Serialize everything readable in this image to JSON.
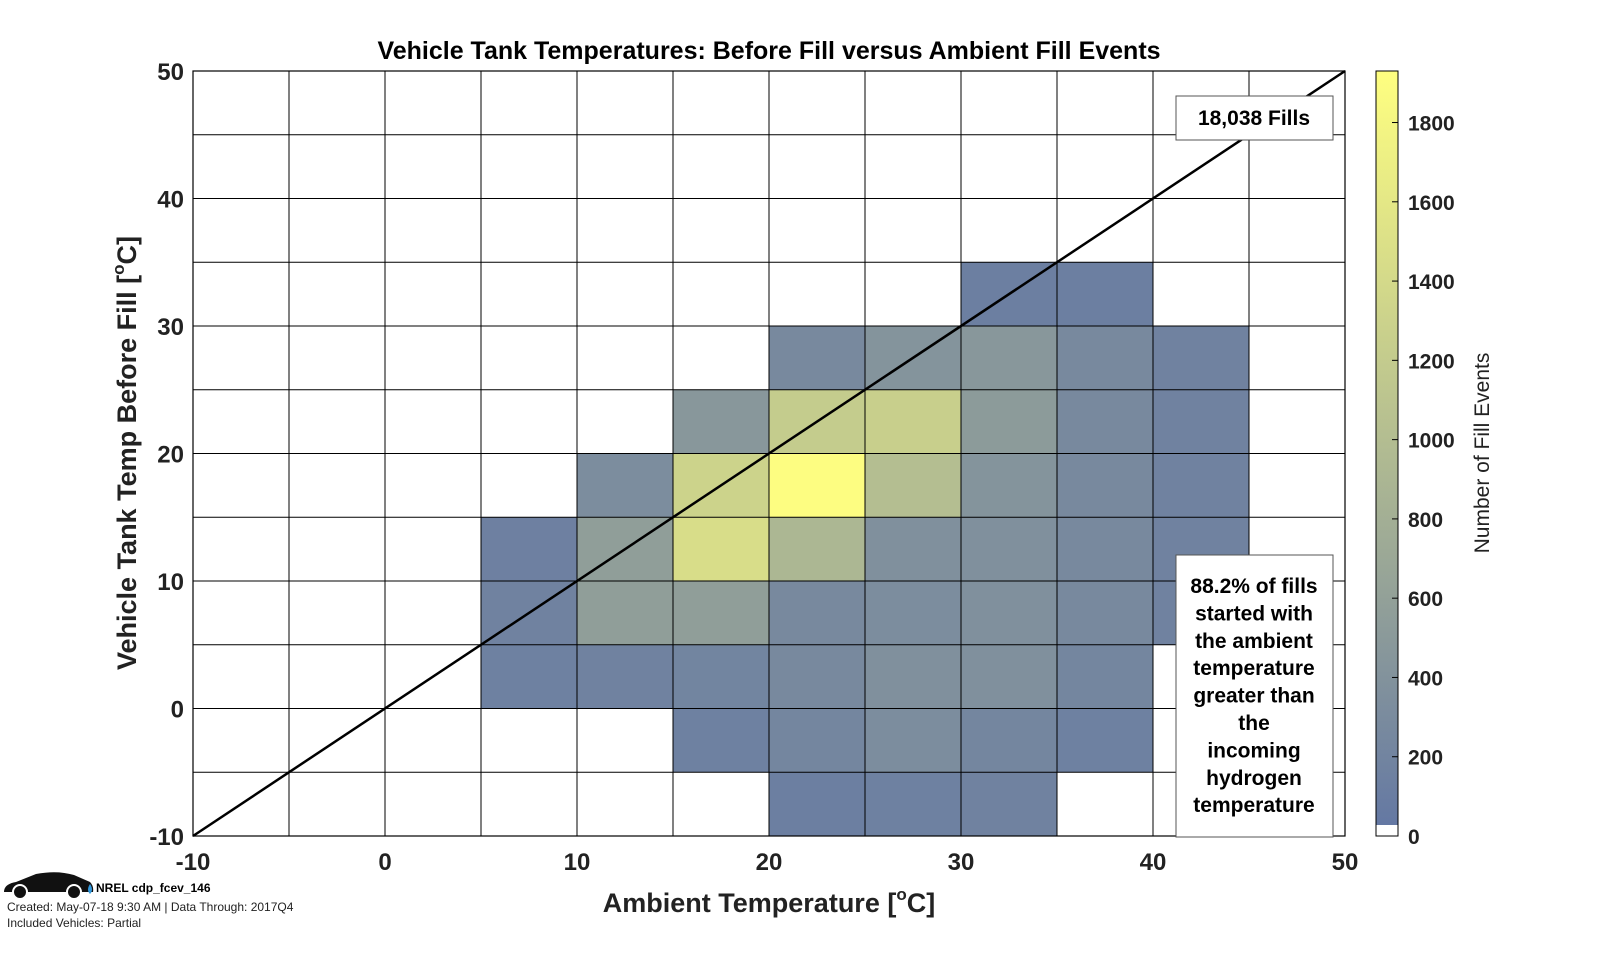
{
  "chart_data": {
    "type": "heatmap",
    "title": "Vehicle Tank Temperatures: Before Fill versus Ambient Fill Events",
    "xlabel": "Ambient Temperature [",
    "xlabel_unit": "C]",
    "ylabel": "Vehicle Tank Temp Before Fill [",
    "ylabel_unit": "C]",
    "degree_symbol": "o",
    "xlim": [
      -10,
      50
    ],
    "ylim": [
      -10,
      50
    ],
    "xticks": [
      -10,
      0,
      10,
      20,
      30,
      40,
      50
    ],
    "yticks": [
      -10,
      0,
      10,
      20,
      30,
      40,
      50
    ],
    "bin_size": 5,
    "grid": true,
    "reference_line": "y = x",
    "colorbar": {
      "label": "Number of Fill Events",
      "ticks": [
        0,
        200,
        400,
        600,
        800,
        1000,
        1200,
        1400,
        1600,
        1800
      ],
      "range": [
        0,
        1930
      ],
      "low_color": "#6478a3",
      "high_color": "#ffff80",
      "zero_color": "#ffffff"
    },
    "cells": [
      {
        "x": 30,
        "y": 30,
        "count": 100
      },
      {
        "x": 35,
        "y": 30,
        "count": 100
      },
      {
        "x": 20,
        "y": 25,
        "count": 250
      },
      {
        "x": 25,
        "y": 25,
        "count": 400
      },
      {
        "x": 30,
        "y": 25,
        "count": 450
      },
      {
        "x": 35,
        "y": 25,
        "count": 250
      },
      {
        "x": 40,
        "y": 25,
        "count": 150
      },
      {
        "x": 15,
        "y": 20,
        "count": 450
      },
      {
        "x": 20,
        "y": 20,
        "count": 1200
      },
      {
        "x": 25,
        "y": 20,
        "count": 1250
      },
      {
        "x": 30,
        "y": 20,
        "count": 500
      },
      {
        "x": 35,
        "y": 20,
        "count": 250
      },
      {
        "x": 40,
        "y": 20,
        "count": 150
      },
      {
        "x": 10,
        "y": 15,
        "count": 300
      },
      {
        "x": 15,
        "y": 15,
        "count": 1300
      },
      {
        "x": 20,
        "y": 15,
        "count": 1900
      },
      {
        "x": 25,
        "y": 15,
        "count": 1000
      },
      {
        "x": 30,
        "y": 15,
        "count": 400
      },
      {
        "x": 35,
        "y": 15,
        "count": 250
      },
      {
        "x": 40,
        "y": 15,
        "count": 150
      },
      {
        "x": 5,
        "y": 10,
        "count": 120
      },
      {
        "x": 10,
        "y": 10,
        "count": 550
      },
      {
        "x": 15,
        "y": 10,
        "count": 1450
      },
      {
        "x": 20,
        "y": 10,
        "count": 900
      },
      {
        "x": 25,
        "y": 10,
        "count": 350
      },
      {
        "x": 30,
        "y": 10,
        "count": 350
      },
      {
        "x": 35,
        "y": 10,
        "count": 250
      },
      {
        "x": 40,
        "y": 10,
        "count": 150
      },
      {
        "x": 5,
        "y": 5,
        "count": 150
      },
      {
        "x": 10,
        "y": 5,
        "count": 550
      },
      {
        "x": 15,
        "y": 5,
        "count": 550
      },
      {
        "x": 20,
        "y": 5,
        "count": 250
      },
      {
        "x": 25,
        "y": 5,
        "count": 300
      },
      {
        "x": 30,
        "y": 5,
        "count": 350
      },
      {
        "x": 35,
        "y": 5,
        "count": 250
      },
      {
        "x": 40,
        "y": 5,
        "count": 150
      },
      {
        "x": 5,
        "y": 0,
        "count": 130
      },
      {
        "x": 10,
        "y": 0,
        "count": 150
      },
      {
        "x": 15,
        "y": 0,
        "count": 180
      },
      {
        "x": 20,
        "y": 0,
        "count": 250
      },
      {
        "x": 25,
        "y": 0,
        "count": 350
      },
      {
        "x": 30,
        "y": 0,
        "count": 350
      },
      {
        "x": 35,
        "y": 0,
        "count": 200
      },
      {
        "x": 15,
        "y": -5,
        "count": 130
      },
      {
        "x": 20,
        "y": -5,
        "count": 200
      },
      {
        "x": 25,
        "y": -5,
        "count": 300
      },
      {
        "x": 30,
        "y": -5,
        "count": 200
      },
      {
        "x": 35,
        "y": -5,
        "count": 130
      },
      {
        "x": 20,
        "y": -10,
        "count": 100
      },
      {
        "x": 25,
        "y": -10,
        "count": 130
      },
      {
        "x": 30,
        "y": -10,
        "count": 150
      }
    ],
    "annotations": {
      "total": "18,038 Fills",
      "note_lines": [
        "88.2% of fills",
        "started with",
        "the ambient",
        "temperature",
        "greater than",
        "the",
        "incoming",
        "hydrogen",
        "temperature"
      ]
    }
  },
  "footer": {
    "source": "NREL cdp_fcev_146",
    "created": "Created: May-07-18  9:30 AM | Data Through: 2017Q4",
    "vehicles": "Included Vehicles: Partial"
  }
}
